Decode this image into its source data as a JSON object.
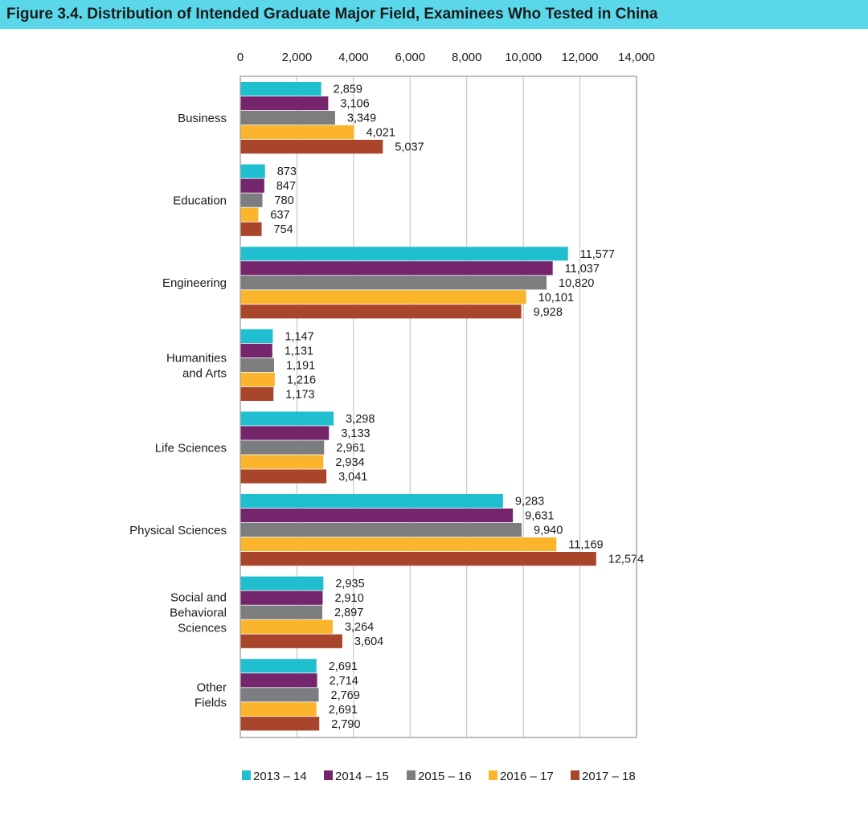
{
  "chart_data": {
    "type": "bar",
    "orientation": "horizontal",
    "title": "Figure 3.4. Distribution of Intended Graduate Major Field, Examinees Who Tested in China",
    "categories": [
      [
        "Business"
      ],
      [
        "Education"
      ],
      [
        "Engineering"
      ],
      [
        "Humanities",
        "and Arts"
      ],
      [
        "Life Sciences"
      ],
      [
        "Physical Sciences"
      ],
      [
        "Social and",
        "Behavioral",
        "Sciences"
      ],
      [
        "Other",
        "Fields"
      ]
    ],
    "series": [
      {
        "name": "2013 – 14",
        "color": "#1fbfcf",
        "values": [
          2859,
          873,
          11577,
          1147,
          3298,
          9283,
          2935,
          2691
        ]
      },
      {
        "name": "2014 – 15",
        "color": "#74256b",
        "values": [
          3106,
          847,
          11037,
          1131,
          3133,
          9631,
          2910,
          2714
        ]
      },
      {
        "name": "2015 – 16",
        "color": "#7c7d7f",
        "values": [
          3349,
          780,
          10820,
          1191,
          2961,
          9940,
          2897,
          2769
        ]
      },
      {
        "name": "2016 – 17",
        "color": "#fbb52c",
        "values": [
          4021,
          637,
          10101,
          1216,
          2934,
          11169,
          3264,
          2691
        ]
      },
      {
        "name": "2017 – 18",
        "color": "#a9452a",
        "values": [
          5037,
          754,
          9928,
          1173,
          3041,
          12574,
          3604,
          2790
        ]
      }
    ],
    "xlim": [
      0,
      14000
    ],
    "ticks": [
      0,
      2000,
      4000,
      6000,
      8000,
      10000,
      12000,
      14000
    ],
    "tick_labels": [
      "0",
      "2,000",
      "4,000",
      "6,000",
      "8,000",
      "10,000",
      "12,000",
      "14,000"
    ],
    "xaxis_position": "top",
    "grid": true,
    "legend_position": "bottom"
  }
}
